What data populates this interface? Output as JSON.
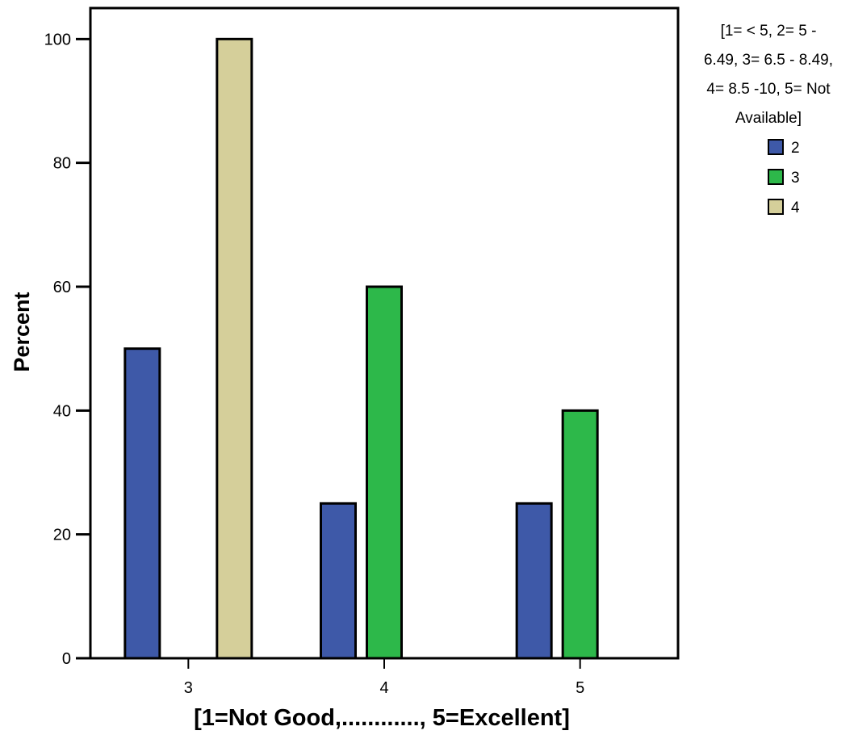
{
  "chart_data": {
    "type": "bar",
    "title": "",
    "xlabel": "[1=Not Good,............, 5=Excellent]",
    "ylabel": "Percent",
    "categories": [
      "3",
      "4",
      "5"
    ],
    "series": [
      {
        "name": "2",
        "color": "#3e59a8",
        "values": [
          50,
          25,
          25
        ]
      },
      {
        "name": "3",
        "color": "#2db84a",
        "values": [
          0,
          60,
          40
        ]
      },
      {
        "name": "4",
        "color": "#d5cf9a",
        "values": [
          100,
          0,
          0
        ]
      }
    ],
    "ylim": [
      0,
      105
    ],
    "yticks": [
      0,
      20,
      40,
      60,
      80,
      100
    ],
    "grid": false,
    "legend": {
      "placement": "right",
      "title_lines": [
        "[1= < 5, 2= 5 -",
        "6.49, 3= 6.5 - 8.49,",
        "4= 8.5 -10, 5= Not",
        "Available]"
      ]
    }
  }
}
